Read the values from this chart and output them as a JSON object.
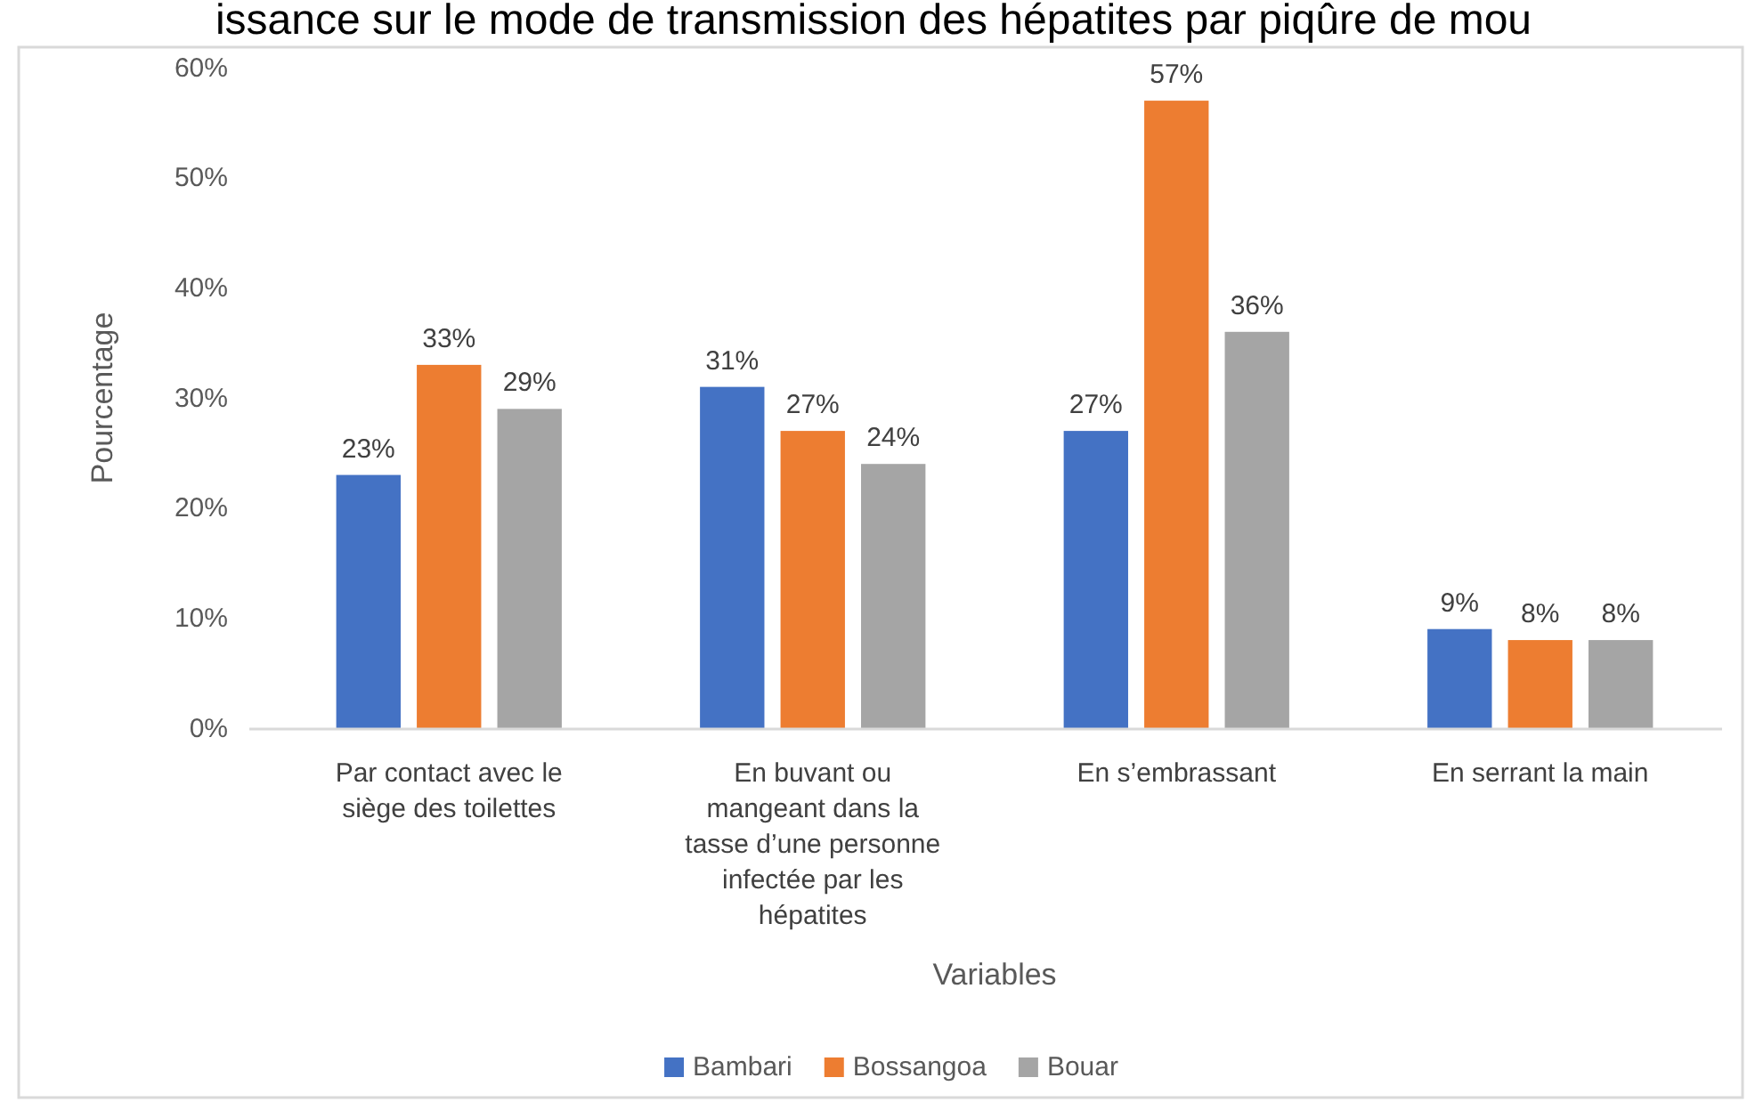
{
  "chart_data": {
    "type": "bar",
    "title": "issance sur le mode de transmission des hépatites par piqûre de mou",
    "xlabel": "Variables",
    "ylabel": "Pourcentage",
    "categories": [
      "Par contact avec le siège des toilettes",
      "En buvant ou mangeant dans la tasse d’une personne infectée par les hépatites",
      "En s’embrassant",
      "En serrant la main"
    ],
    "series": [
      {
        "name": "Bambari",
        "color": "#4472c4",
        "values": [
          23,
          31,
          27,
          9
        ],
        "value_labels": [
          "23%",
          "31%",
          "27%",
          "9%"
        ]
      },
      {
        "name": "Bossangoa",
        "color": "#ed7d31",
        "values": [
          33,
          27,
          57,
          8
        ],
        "value_labels": [
          "33%",
          "27%",
          "57%",
          "8%"
        ]
      },
      {
        "name": "Bouar",
        "color": "#a5a5a5",
        "values": [
          29,
          24,
          36,
          8
        ],
        "value_labels": [
          "29%",
          "24%",
          "36%",
          "8%"
        ]
      }
    ],
    "ylim": [
      0,
      60
    ],
    "yticks": [
      {
        "value": 0,
        "label": "0%"
      },
      {
        "value": 10,
        "label": "10%"
      },
      {
        "value": 20,
        "label": "20%"
      },
      {
        "value": 30,
        "label": "30%"
      },
      {
        "value": 40,
        "label": "40%"
      },
      {
        "value": 50,
        "label": "50%"
      },
      {
        "value": 60,
        "label": "60%"
      }
    ],
    "grid": false,
    "legend": "bottom"
  }
}
